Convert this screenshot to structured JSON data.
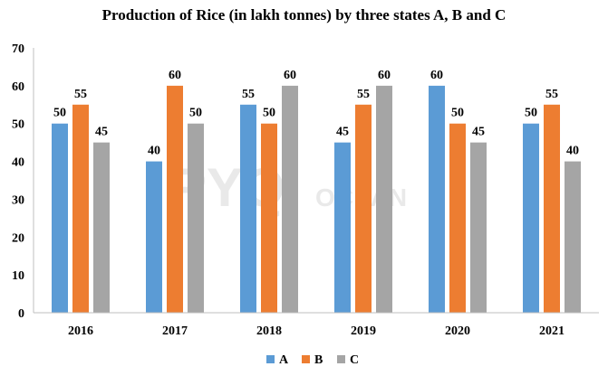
{
  "chart_data": {
    "type": "bar",
    "title": "Production of Rice (in lakh tonnes) by three states A, B and C",
    "categories": [
      "2016",
      "2017",
      "2018",
      "2019",
      "2020",
      "2021"
    ],
    "series": [
      {
        "name": "A",
        "color": "#5B9BD5",
        "values": [
          50,
          40,
          55,
          45,
          60,
          50
        ]
      },
      {
        "name": "B",
        "color": "#ED7D31",
        "values": [
          55,
          60,
          50,
          55,
          50,
          55
        ]
      },
      {
        "name": "C",
        "color": "#A5A5A5",
        "values": [
          45,
          50,
          60,
          60,
          45,
          40
        ]
      }
    ],
    "ylim": [
      0,
      70
    ],
    "yticks": [
      0,
      10,
      20,
      30,
      40,
      50,
      60,
      70
    ],
    "grid": false,
    "legend_position": "bottom",
    "data_labels": true
  },
  "watermark": {
    "main": "PYQ",
    "sub": "OCEAN"
  }
}
